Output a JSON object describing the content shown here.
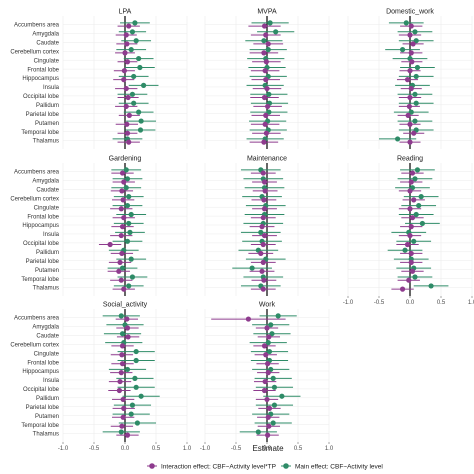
{
  "chart_data": {
    "type": "forest",
    "xlabel": "Estimate",
    "xlim": [
      -1.0,
      1.0
    ],
    "xticks": [
      "-1.0",
      "-0.5",
      "0.0",
      "0.5",
      "1.0"
    ],
    "regions": [
      "Accumbens area",
      "Amygdala",
      "Caudate",
      "Cerebellum cortex",
      "Cingulate",
      "Frontal lobe",
      "Hippocampus",
      "Insula",
      "Occipital lobe",
      "Pallidum",
      "Parietal lobe",
      "Putamen",
      "Temporal lobe",
      "Thalamus"
    ],
    "colors": {
      "interaction": "#8e3b8e",
      "main": "#2e8b67",
      "zero_line": "#000000"
    },
    "legend": [
      {
        "key": "interaction",
        "label": "Interaction effect: CBF~Activity level*TP"
      },
      {
        "key": "main",
        "label": "Main effect: CBF~Activity level"
      }
    ],
    "panels": [
      {
        "title": "LPA",
        "interaction": {
          "est": [
            0.06,
            0.02,
            0.03,
            0.0,
            0.04,
            -0.01,
            -0.02,
            0.02,
            0.05,
            0.02,
            0.07,
            0.03,
            0.04,
            0.06
          ],
          "lo": [
            -0.12,
            -0.15,
            -0.14,
            -0.16,
            -0.12,
            -0.18,
            -0.19,
            -0.16,
            -0.12,
            -0.16,
            -0.1,
            -0.15,
            -0.12,
            -0.12
          ],
          "hi": [
            0.24,
            0.19,
            0.2,
            0.16,
            0.2,
            0.16,
            0.15,
            0.2,
            0.22,
            0.2,
            0.24,
            0.21,
            0.2,
            0.24
          ]
        },
        "main": {
          "est": [
            0.16,
            0.12,
            0.18,
            0.1,
            0.22,
            0.24,
            0.14,
            0.3,
            0.12,
            0.14,
            0.22,
            0.26,
            0.25,
            0.04
          ],
          "lo": [
            -0.08,
            -0.1,
            -0.06,
            -0.14,
            -0.02,
            0.0,
            -0.1,
            0.06,
            -0.12,
            -0.1,
            -0.02,
            0.02,
            0.01,
            -0.2
          ],
          "hi": [
            0.4,
            0.34,
            0.42,
            0.34,
            0.46,
            0.48,
            0.38,
            0.54,
            0.36,
            0.38,
            0.46,
            0.5,
            0.49,
            0.28
          ]
        }
      },
      {
        "title": "MVPA",
        "interaction": {
          "est": [
            -0.04,
            -0.02,
            0.02,
            -0.05,
            -0.01,
            -0.03,
            -0.02,
            0.0,
            -0.04,
            0.01,
            -0.02,
            -0.03,
            -0.01,
            -0.05
          ],
          "lo": [
            -0.3,
            -0.26,
            -0.22,
            -0.28,
            -0.24,
            -0.26,
            -0.25,
            -0.23,
            -0.27,
            -0.22,
            -0.25,
            -0.26,
            -0.24,
            -0.28
          ],
          "hi": [
            0.22,
            0.22,
            0.26,
            0.18,
            0.22,
            0.2,
            0.21,
            0.23,
            0.19,
            0.24,
            0.21,
            0.2,
            0.22,
            0.18
          ]
        },
        "main": {
          "est": [
            0.05,
            0.14,
            -0.05,
            0.02,
            -0.02,
            0.0,
            0.02,
            -0.03,
            0.03,
            0.04,
            0.03,
            0.01,
            0.02,
            -0.03
          ],
          "lo": [
            -0.25,
            -0.16,
            -0.35,
            -0.28,
            -0.32,
            -0.3,
            -0.28,
            -0.33,
            -0.27,
            -0.26,
            -0.27,
            -0.29,
            -0.28,
            -0.33
          ],
          "hi": [
            0.35,
            0.44,
            0.25,
            0.32,
            0.28,
            0.3,
            0.32,
            0.27,
            0.33,
            0.34,
            0.33,
            0.31,
            0.32,
            0.27
          ]
        }
      },
      {
        "title": "Domestic_work",
        "interaction": {
          "est": [
            0.02,
            0.0,
            0.05,
            0.02,
            0.03,
            0.0,
            -0.04,
            0.02,
            0.0,
            -0.01,
            -0.03,
            0.0,
            0.06,
            0.0
          ],
          "lo": [
            -0.16,
            -0.18,
            -0.12,
            -0.16,
            -0.14,
            -0.17,
            -0.21,
            -0.15,
            -0.18,
            -0.18,
            -0.2,
            -0.17,
            -0.11,
            -0.17
          ],
          "hi": [
            0.2,
            0.18,
            0.22,
            0.2,
            0.2,
            0.17,
            0.13,
            0.19,
            0.18,
            0.16,
            0.14,
            0.17,
            0.23,
            0.17
          ]
        },
        "main": {
          "est": [
            -0.06,
            0.08,
            0.1,
            -0.12,
            0.0,
            0.12,
            0.1,
            0.04,
            0.08,
            0.1,
            0.02,
            0.08,
            0.1,
            -0.2
          ],
          "lo": [
            -0.34,
            -0.2,
            -0.18,
            -0.4,
            -0.28,
            -0.16,
            -0.18,
            -0.24,
            -0.2,
            -0.18,
            -0.26,
            -0.2,
            -0.18,
            -0.5
          ],
          "hi": [
            0.22,
            0.36,
            0.38,
            0.16,
            0.28,
            0.4,
            0.38,
            0.32,
            0.36,
            0.38,
            0.3,
            0.36,
            0.38,
            0.1
          ]
        }
      },
      {
        "title": "Gardening",
        "interaction": {
          "est": [
            -0.04,
            -0.02,
            -0.05,
            -0.03,
            -0.06,
            -0.02,
            -0.04,
            -0.06,
            -0.24,
            -0.05,
            -0.08,
            -0.1,
            -0.06,
            -0.02
          ],
          "lo": [
            -0.22,
            -0.2,
            -0.23,
            -0.21,
            -0.24,
            -0.2,
            -0.22,
            -0.24,
            -0.42,
            -0.23,
            -0.26,
            -0.28,
            -0.24,
            -0.2
          ],
          "hi": [
            0.14,
            0.16,
            0.13,
            0.15,
            0.12,
            0.16,
            0.14,
            0.12,
            -0.06,
            0.13,
            0.1,
            0.08,
            0.12,
            0.16
          ]
        },
        "main": {
          "est": [
            0.02,
            0.04,
            0.02,
            0.06,
            0.04,
            0.1,
            0.06,
            0.08,
            0.04,
            -0.02,
            0.1,
            -0.04,
            0.12,
            0.06
          ],
          "lo": [
            -0.22,
            -0.2,
            -0.22,
            -0.18,
            -0.2,
            -0.14,
            -0.18,
            -0.16,
            -0.2,
            -0.26,
            -0.14,
            -0.28,
            -0.12,
            -0.18
          ],
          "hi": [
            0.26,
            0.28,
            0.26,
            0.3,
            0.28,
            0.34,
            0.3,
            0.32,
            0.28,
            0.22,
            0.34,
            0.2,
            0.36,
            0.3
          ]
        }
      },
      {
        "title": "Maintenance",
        "interaction": {
          "est": [
            -0.06,
            -0.04,
            -0.03,
            -0.05,
            -0.04,
            -0.06,
            -0.08,
            -0.04,
            -0.06,
            -0.1,
            -0.06,
            -0.08,
            -0.05,
            -0.06
          ],
          "lo": [
            -0.26,
            -0.24,
            -0.23,
            -0.25,
            -0.24,
            -0.26,
            -0.28,
            -0.24,
            -0.26,
            -0.3,
            -0.26,
            -0.28,
            -0.25,
            -0.26
          ],
          "hi": [
            0.14,
            0.16,
            0.17,
            0.15,
            0.16,
            0.14,
            0.12,
            0.16,
            0.14,
            0.1,
            0.14,
            0.12,
            0.15,
            0.14
          ]
        },
        "main": {
          "est": [
            -0.1,
            -0.06,
            -0.04,
            -0.08,
            -0.02,
            -0.04,
            -0.06,
            -0.1,
            -0.08,
            -0.14,
            -0.02,
            -0.24,
            -0.06,
            -0.1
          ],
          "lo": [
            -0.42,
            -0.38,
            -0.36,
            -0.4,
            -0.34,
            -0.36,
            -0.38,
            -0.42,
            -0.4,
            -0.46,
            -0.34,
            -0.56,
            -0.38,
            -0.42
          ],
          "hi": [
            0.22,
            0.26,
            0.28,
            0.24,
            0.3,
            0.28,
            0.26,
            0.22,
            0.24,
            0.18,
            0.3,
            0.08,
            0.26,
            0.22
          ]
        }
      },
      {
        "title": "Reading",
        "interaction": {
          "est": [
            0.04,
            0.02,
            0.0,
            0.06,
            0.0,
            0.04,
            0.02,
            0.0,
            -0.04,
            0.02,
            0.02,
            0.04,
            -0.02,
            -0.12
          ],
          "lo": [
            -0.14,
            -0.16,
            -0.18,
            -0.12,
            -0.18,
            -0.14,
            -0.16,
            -0.18,
            -0.22,
            -0.16,
            -0.16,
            -0.14,
            -0.2,
            -0.3
          ],
          "hi": [
            0.22,
            0.2,
            0.18,
            0.24,
            0.18,
            0.22,
            0.2,
            0.18,
            0.14,
            0.2,
            0.2,
            0.22,
            0.16,
            0.06
          ]
        },
        "main": {
          "est": [
            0.12,
            0.08,
            0.04,
            0.18,
            0.14,
            0.1,
            0.2,
            -0.02,
            0.06,
            -0.08,
            0.02,
            0.06,
            0.08,
            0.34
          ],
          "lo": [
            -0.16,
            -0.2,
            -0.24,
            -0.1,
            -0.14,
            -0.18,
            -0.08,
            -0.3,
            -0.22,
            -0.36,
            -0.26,
            -0.22,
            -0.2,
            0.06
          ],
          "hi": [
            0.4,
            0.36,
            0.32,
            0.46,
            0.42,
            0.38,
            0.48,
            0.26,
            0.34,
            0.2,
            0.3,
            0.34,
            0.36,
            0.62
          ]
        }
      },
      {
        "title": "Social_activity",
        "interaction": {
          "est": [
            0.03,
            0.04,
            0.05,
            -0.04,
            -0.05,
            -0.04,
            -0.06,
            -0.08,
            -0.09,
            -0.03,
            -0.02,
            -0.03,
            -0.05,
            0.04
          ],
          "lo": [
            -0.15,
            -0.14,
            -0.13,
            -0.22,
            -0.23,
            -0.22,
            -0.24,
            -0.26,
            -0.27,
            -0.21,
            -0.2,
            -0.21,
            -0.23,
            -0.14
          ],
          "hi": [
            0.21,
            0.22,
            0.23,
            0.14,
            0.13,
            0.14,
            0.12,
            0.1,
            0.09,
            0.15,
            0.16,
            0.15,
            0.13,
            0.22
          ]
        },
        "main": {
          "est": [
            -0.06,
            0.0,
            -0.04,
            -0.02,
            0.18,
            0.18,
            0.04,
            0.16,
            0.18,
            0.26,
            0.12,
            0.1,
            0.2,
            -0.06
          ],
          "lo": [
            -0.36,
            -0.3,
            -0.34,
            -0.32,
            -0.12,
            -0.12,
            -0.26,
            -0.14,
            -0.12,
            -0.04,
            -0.18,
            -0.2,
            -0.1,
            -0.36
          ],
          "hi": [
            0.24,
            0.3,
            0.26,
            0.28,
            0.48,
            0.48,
            0.34,
            0.46,
            0.48,
            0.56,
            0.42,
            0.4,
            0.5,
            0.24
          ]
        }
      },
      {
        "title": "Work",
        "interaction": {
          "est": [
            -0.3,
            0.0,
            0.03,
            -0.04,
            -0.02,
            0.01,
            0.02,
            -0.03,
            -0.04,
            0.0,
            0.04,
            0.02,
            0.03,
            0.01
          ],
          "lo": [
            -0.9,
            -0.18,
            -0.15,
            -0.22,
            -0.2,
            -0.17,
            -0.16,
            -0.21,
            -0.22,
            -0.18,
            -0.14,
            -0.16,
            -0.15,
            -0.17
          ],
          "hi": [
            0.3,
            0.18,
            0.21,
            0.14,
            0.16,
            0.19,
            0.2,
            0.15,
            0.14,
            0.18,
            0.22,
            0.2,
            0.21,
            0.19
          ]
        },
        "main": {
          "est": [
            0.18,
            0.06,
            0.08,
            0.02,
            0.04,
            0.04,
            0.06,
            0.1,
            0.12,
            0.24,
            0.12,
            0.06,
            0.1,
            -0.14
          ],
          "lo": [
            -0.12,
            -0.24,
            -0.22,
            -0.28,
            -0.26,
            -0.26,
            -0.24,
            -0.2,
            -0.18,
            -0.06,
            -0.18,
            -0.24,
            -0.2,
            -0.44
          ],
          "hi": [
            0.48,
            0.36,
            0.38,
            0.32,
            0.34,
            0.34,
            0.36,
            0.4,
            0.42,
            0.54,
            0.42,
            0.36,
            0.4,
            0.16
          ]
        }
      }
    ]
  }
}
